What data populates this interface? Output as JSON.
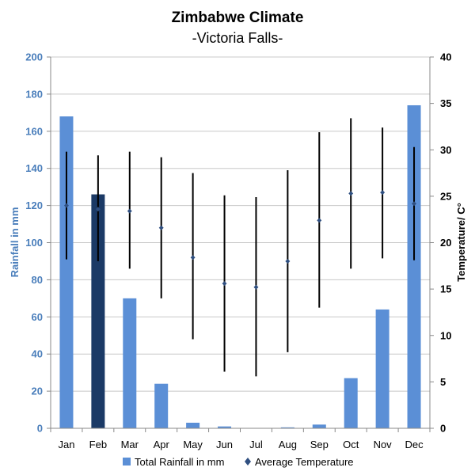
{
  "chart_data": {
    "type": "bar",
    "title": "Zimbabwe Climate",
    "subtitle": "-Victoria Falls-",
    "categories": [
      "Jan",
      "Feb",
      "Mar",
      "Apr",
      "May",
      "Jun",
      "Jul",
      "Aug",
      "Sep",
      "Oct",
      "Nov",
      "Dec"
    ],
    "ylabel_left": "Rainfall in mm",
    "ylabel_right": "Temperature/ C°",
    "ylim_left": [
      0,
      200
    ],
    "ylim_right": [
      0,
      40
    ],
    "yticks_left": [
      "0",
      "20",
      "40",
      "60",
      "80",
      "100",
      "120",
      "140",
      "160",
      "180",
      "200"
    ],
    "yticks_right": [
      "0",
      "5",
      "10",
      "15",
      "20",
      "25",
      "30",
      "35",
      "40"
    ],
    "grid": true,
    "legend_position": "bottom",
    "highlight_category": "Feb",
    "colors": {
      "bar": "#5b8fd6",
      "bar_highlight": "#1b3a66",
      "temperature": "#000000",
      "temperature_marker": "#2f4f80",
      "left_axis_text": "#4a7ebb",
      "grid": "#c8c8c8"
    },
    "series": [
      {
        "name": "Total Rainfall in mm",
        "type": "bar",
        "axis": "left",
        "values": [
          168,
          126,
          70,
          24,
          3,
          1,
          0,
          0.5,
          2,
          27,
          64,
          174
        ]
      },
      {
        "name": "Average Temperature",
        "type": "range-marker",
        "axis": "right",
        "values": [
          24,
          23.6,
          23.4,
          21.6,
          18.4,
          15.6,
          15.2,
          18,
          22.4,
          25.3,
          25.4,
          24.2
        ],
        "low": [
          18.2,
          18,
          17.2,
          14,
          9.6,
          6.1,
          5.6,
          8.2,
          13,
          17.2,
          18.3,
          18.1
        ],
        "high": [
          29.8,
          29.4,
          29.8,
          29.2,
          27.5,
          25.1,
          24.9,
          27.8,
          31.9,
          33.4,
          32.4,
          30.3
        ]
      }
    ]
  }
}
